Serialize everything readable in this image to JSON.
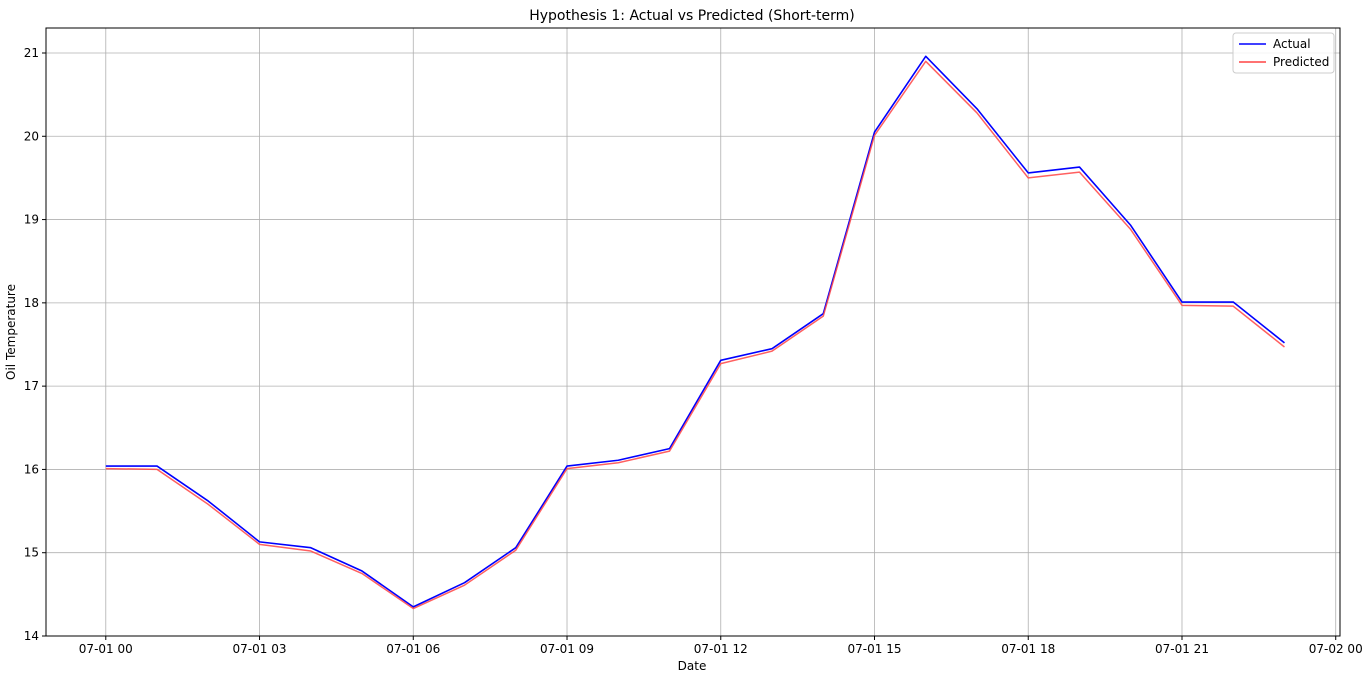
{
  "chart_data": {
    "type": "line",
    "title": "Hypothesis 1: Actual vs Predicted (Short-term)",
    "xlabel": "Date",
    "ylabel": "Oil Temperature",
    "x": [
      "07-01 00:00",
      "07-01 01:00",
      "07-01 02:00",
      "07-01 03:00",
      "07-01 04:00",
      "07-01 05:00",
      "07-01 06:00",
      "07-01 07:00",
      "07-01 08:00",
      "07-01 09:00",
      "07-01 10:00",
      "07-01 11:00",
      "07-01 12:00",
      "07-01 13:00",
      "07-01 14:00",
      "07-01 15:00",
      "07-01 16:00",
      "07-01 17:00",
      "07-01 18:00",
      "07-01 19:00",
      "07-01 20:00",
      "07-01 21:00",
      "07-01 22:00",
      "07-01 23:00"
    ],
    "x_ticks": [
      "07-01 00",
      "07-01 03",
      "07-01 06",
      "07-01 09",
      "07-01 12",
      "07-01 15",
      "07-01 18",
      "07-01 21",
      "07-02 00"
    ],
    "y_ticks": [
      "14",
      "15",
      "16",
      "17",
      "18",
      "19",
      "20",
      "21"
    ],
    "xlim": [
      "06-30 22:50",
      "07-02 00:05"
    ],
    "ylim": [
      14,
      21.3
    ],
    "grid": true,
    "legend_position": "top-right",
    "series": [
      {
        "name": "Actual",
        "color": "#0000ff",
        "values": [
          16.04,
          16.04,
          15.62,
          15.13,
          15.06,
          14.78,
          14.35,
          14.64,
          15.06,
          16.04,
          16.11,
          16.25,
          17.31,
          17.45,
          17.87,
          20.05,
          20.96,
          20.33,
          19.56,
          19.63,
          18.93,
          18.01,
          18.01,
          17.52
        ]
      },
      {
        "name": "Predicted",
        "color": "#ff4444",
        "values": [
          16.01,
          16.0,
          15.58,
          15.1,
          15.02,
          14.75,
          14.33,
          14.61,
          15.03,
          16.01,
          16.08,
          16.22,
          17.27,
          17.42,
          17.84,
          20.01,
          20.9,
          20.28,
          19.5,
          19.57,
          18.88,
          17.97,
          17.96,
          17.47
        ]
      }
    ]
  }
}
